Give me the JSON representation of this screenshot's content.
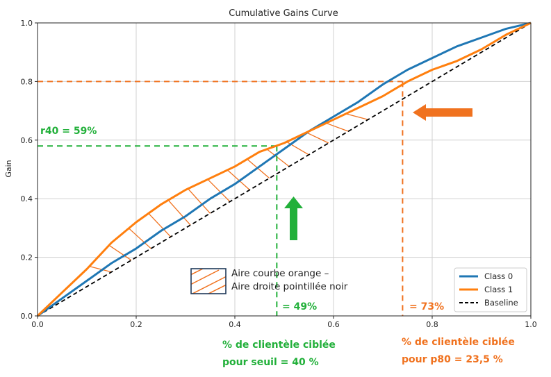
{
  "chart_data": {
    "type": "line",
    "title": "Cumulative Gains Curve",
    "xlabel": "",
    "ylabel": "Gain",
    "xlim": [
      0,
      1
    ],
    "ylim": [
      0,
      1
    ],
    "grid": true,
    "x_ticks": [
      "0.0",
      "0.2",
      "0.4",
      "0.6",
      "0.8",
      "1.0"
    ],
    "y_ticks": [
      "0.0",
      "0.2",
      "0.4",
      "0.6",
      "0.8",
      "1.0"
    ],
    "legend_position": "bottom-right",
    "series": [
      {
        "name": "Class 0",
        "color": "#1f77b4",
        "style": "solid",
        "x": [
          0,
          0.05,
          0.1,
          0.15,
          0.2,
          0.25,
          0.3,
          0.35,
          0.4,
          0.45,
          0.5,
          0.55,
          0.6,
          0.65,
          0.7,
          0.75,
          0.8,
          0.85,
          0.9,
          0.95,
          1.0
        ],
        "y": [
          0,
          0.06,
          0.12,
          0.18,
          0.23,
          0.29,
          0.34,
          0.4,
          0.45,
          0.51,
          0.57,
          0.63,
          0.68,
          0.73,
          0.79,
          0.84,
          0.88,
          0.92,
          0.95,
          0.98,
          1.0
        ]
      },
      {
        "name": "Class 1",
        "color": "#ff7f0e",
        "style": "solid",
        "x": [
          0,
          0.05,
          0.1,
          0.15,
          0.2,
          0.25,
          0.3,
          0.35,
          0.4,
          0.45,
          0.5,
          0.55,
          0.6,
          0.65,
          0.7,
          0.75,
          0.8,
          0.85,
          0.9,
          0.95,
          1.0
        ],
        "y": [
          0,
          0.08,
          0.16,
          0.25,
          0.32,
          0.38,
          0.43,
          0.47,
          0.51,
          0.56,
          0.59,
          0.63,
          0.67,
          0.71,
          0.75,
          0.8,
          0.84,
          0.87,
          0.91,
          0.96,
          1.0
        ]
      },
      {
        "name": "Baseline",
        "color": "#000000",
        "style": "dashed",
        "x": [
          0,
          1
        ],
        "y": [
          0,
          1
        ]
      }
    ],
    "guides": [
      {
        "name": "green-threshold",
        "color": "#22b03a",
        "x": 0.485,
        "y": 0.58
      },
      {
        "name": "orange-threshold",
        "color": "#f0721f",
        "x": 0.74,
        "y": 0.8
      }
    ],
    "hatch": {
      "color": "#f0721f",
      "label_line1": "Aire courbe orange –",
      "label_line2": "Aire droite pointillée noir"
    },
    "annotations": {
      "r40": "r40 = 59%",
      "x49": "= 49%",
      "x73": "= 73%",
      "green_note_line1": "% de clientèle ciblée",
      "green_note_line2": "pour seuil = 40 %",
      "orange_note_line1": "% de clientèle ciblée",
      "orange_note_line2": "pour p80 = 23,5 %"
    }
  }
}
